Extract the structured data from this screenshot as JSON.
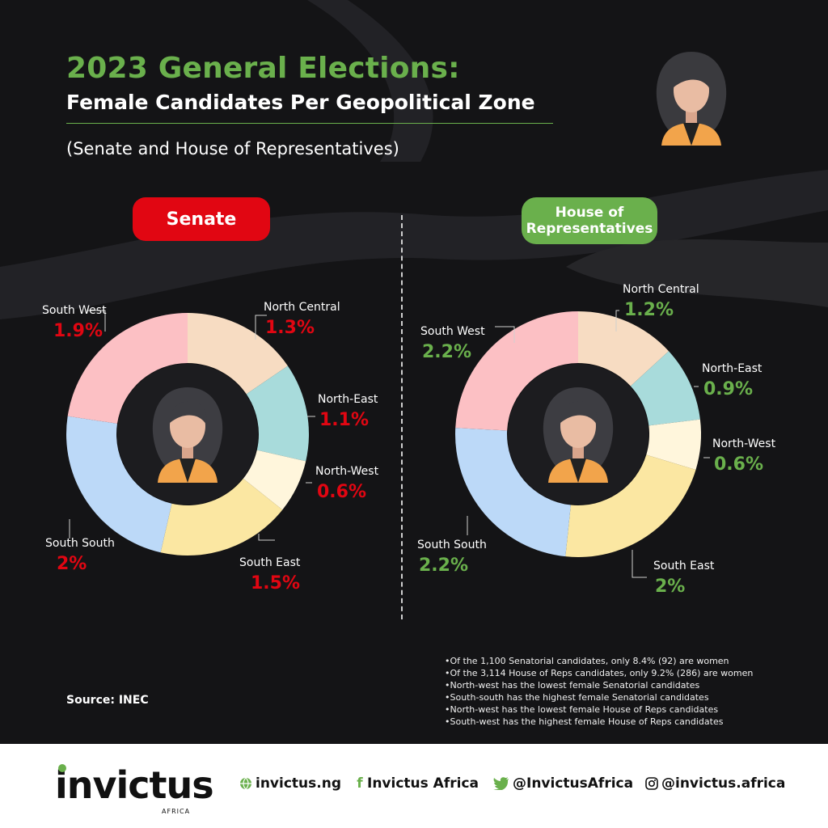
{
  "header": {
    "title": "2023 General Elections:",
    "subtitle": "Female Candidates Per Geopolitical Zone",
    "note": "(Senate and House of Representatives)"
  },
  "colors": {
    "green": "#6ab04c",
    "red": "#e10612",
    "background": "#141416",
    "segments": {
      "North Central": "#f7dcc2",
      "North-East": "#a8dbdb",
      "North-West": "#fff6dc",
      "South East": "#fbe7a2",
      "South South": "#bcd9f8",
      "South West": "#fcc0c4"
    }
  },
  "chart_data": [
    {
      "type": "pie",
      "title": "Senate",
      "categories": [
        "North Central",
        "North-East",
        "North-West",
        "South East",
        "South South",
        "South West"
      ],
      "values": [
        1.3,
        1.1,
        0.6,
        1.5,
        2,
        1.9
      ],
      "value_labels": [
        "1.3%",
        "1.1%",
        "0.6%",
        "1.5%",
        "2%",
        "1.9%"
      ],
      "label_color": "#e10612"
    },
    {
      "type": "pie",
      "title": "House of\nRepresentatives",
      "categories": [
        "North Central",
        "North-East",
        "North-West",
        "South East",
        "South South",
        "South West"
      ],
      "values": [
        1.2,
        0.9,
        0.6,
        2,
        2.2,
        2.2
      ],
      "value_labels": [
        "1.2%",
        "0.9%",
        "0.6%",
        "2%",
        "2.2%",
        "2.2%"
      ],
      "label_color": "#6ab04c"
    }
  ],
  "source": "Source: INEC",
  "notes": [
    "Of  the 1,100 Senatorial candidates, only 8.4% (92) are women",
    "Of the 3,114 House of Reps candidates, only 9.2% (286) are women",
    "North-west has the lowest female Senatorial candidates",
    "South-south has the highest female Senatorial candidates",
    "North-west has the lowest female House of Reps candidates",
    "South-west has the highest female House of Reps candidates"
  ],
  "footer": {
    "logo": "invictus",
    "logo_sub": "AFRICA",
    "website": "invictus.ng",
    "facebook": "Invictus Africa",
    "twitter": "@InvictusAfrica",
    "instagram": "@invictus.africa",
    "icons": [
      "globe-icon",
      "facebook-icon",
      "twitter-icon",
      "instagram-icon"
    ]
  }
}
